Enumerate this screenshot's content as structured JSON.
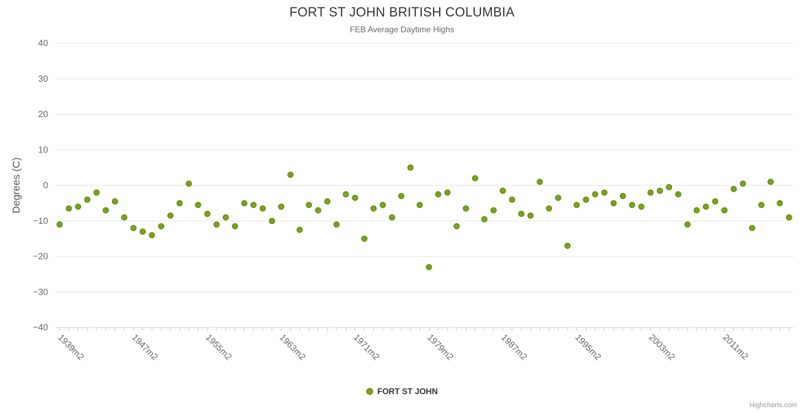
{
  "chart_data": {
    "type": "scatter",
    "title": "FORT ST JOHN BRITISH COLUMBIA",
    "subtitle": "FEB Average Daytime Highs",
    "ylabel": "Degrees (C)",
    "ylim": [
      -40,
      40
    ],
    "y_ticks": [
      -40,
      -30,
      -20,
      -10,
      0,
      10,
      20,
      30,
      40
    ],
    "x_ticks": [
      [
        1939,
        "1939m2"
      ],
      [
        1947,
        "1947m2"
      ],
      [
        1955,
        "1955m2"
      ],
      [
        1963,
        "1963m2"
      ],
      [
        1971,
        "1971m2"
      ],
      [
        1979,
        "1979m2"
      ],
      [
        1987,
        "1987m2"
      ],
      [
        1995,
        "1995m2"
      ],
      [
        2003,
        "2003m2"
      ],
      [
        2011,
        "2011m2"
      ]
    ],
    "grid": "horizontal only",
    "legend_position": "bottom center",
    "colors": {
      "point": "#7aa516",
      "point_border": "#587c10",
      "grid": "#e6e6e6",
      "axis": "#ccd6eb",
      "tick": "#cccccc",
      "axis_label": "#666666"
    },
    "series": [
      {
        "name": "FORT ST JOHN",
        "points": [
          [
            1939,
            -11
          ],
          [
            1940,
            -6.5
          ],
          [
            1941,
            -6
          ],
          [
            1942,
            -4
          ],
          [
            1943,
            -2
          ],
          [
            1944,
            -7
          ],
          [
            1945,
            -4.5
          ],
          [
            1946,
            -9
          ],
          [
            1947,
            -12
          ],
          [
            1948,
            -13
          ],
          [
            1949,
            -14
          ],
          [
            1950,
            -11.5
          ],
          [
            1951,
            -8.5
          ],
          [
            1952,
            -5
          ],
          [
            1953,
            0.5
          ],
          [
            1954,
            -5.5
          ],
          [
            1955,
            -8
          ],
          [
            1956,
            -11
          ],
          [
            1957,
            -9
          ],
          [
            1958,
            -11.5
          ],
          [
            1959,
            -5
          ],
          [
            1960,
            -5.5
          ],
          [
            1961,
            -6.5
          ],
          [
            1962,
            -10
          ],
          [
            1963,
            -6
          ],
          [
            1964,
            3
          ],
          [
            1965,
            -12.5
          ],
          [
            1966,
            -5.5
          ],
          [
            1967,
            -7
          ],
          [
            1968,
            -4.5
          ],
          [
            1969,
            -11
          ],
          [
            1970,
            -2.5
          ],
          [
            1971,
            -3.5
          ],
          [
            1972,
            -15
          ],
          [
            1973,
            -6.5
          ],
          [
            1974,
            -5.5
          ],
          [
            1975,
            -9
          ],
          [
            1976,
            -3
          ],
          [
            1977,
            5
          ],
          [
            1978,
            -5.5
          ],
          [
            1979,
            -23
          ],
          [
            1980,
            -2.5
          ],
          [
            1981,
            -2
          ],
          [
            1982,
            -11.5
          ],
          [
            1983,
            -6.5
          ],
          [
            1984,
            2
          ],
          [
            1985,
            -9.5
          ],
          [
            1986,
            -7
          ],
          [
            1987,
            -1.5
          ],
          [
            1988,
            -4
          ],
          [
            1989,
            -8
          ],
          [
            1990,
            -8.5
          ],
          [
            1991,
            1
          ],
          [
            1992,
            -6.5
          ],
          [
            1993,
            -3.5
          ],
          [
            1994,
            -17
          ],
          [
            1995,
            -5.5
          ],
          [
            1996,
            -4
          ],
          [
            1997,
            -2.5
          ],
          [
            1998,
            -2
          ],
          [
            1999,
            -5
          ],
          [
            2000,
            -3
          ],
          [
            2001,
            -5.5
          ],
          [
            2002,
            -6
          ],
          [
            2003,
            -2
          ],
          [
            2004,
            -1.5
          ],
          [
            2005,
            -0.5
          ],
          [
            2006,
            -2.5
          ],
          [
            2007,
            -11
          ],
          [
            2008,
            -7
          ],
          [
            2009,
            -6
          ],
          [
            2010,
            -4.5
          ],
          [
            2011,
            -7
          ],
          [
            2012,
            -1
          ],
          [
            2013,
            0.5
          ],
          [
            2014,
            -12
          ],
          [
            2015,
            -5.5
          ],
          [
            2016,
            1
          ],
          [
            2017,
            -5
          ],
          [
            2018,
            -9
          ]
        ]
      }
    ],
    "credits": "Highcharts.com"
  }
}
